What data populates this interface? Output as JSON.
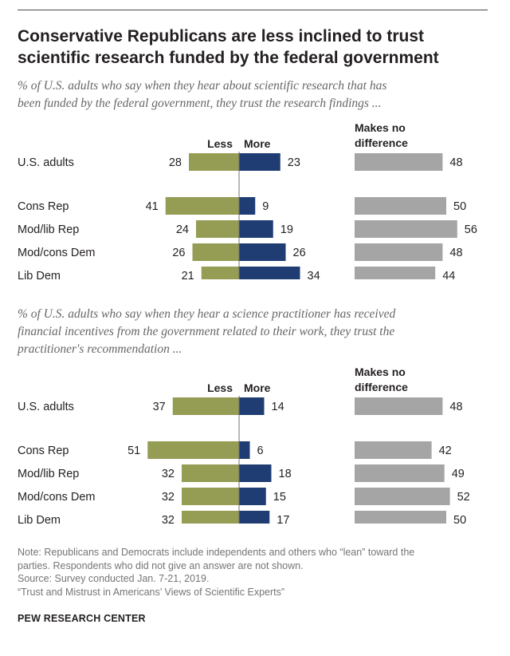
{
  "title_line1": "Conservative Republicans are less inclined to trust",
  "title_line2": "scientific research funded by the federal government",
  "colors": {
    "less": "#959c54",
    "more": "#1f3c73",
    "no_diff": "#a5a5a5",
    "axis": "#707070"
  },
  "chart_data": [
    {
      "type": "bar",
      "subtitle_line1": "% of U.S. adults who say when they hear about scientific research that has",
      "subtitle_line2": "been funded by the federal government, they trust the research findings ...",
      "legend": {
        "less": "Less",
        "more": "More",
        "no_diff_line1": "Makes no",
        "no_diff_line2": "difference"
      },
      "categories": [
        "U.S. adults",
        "Cons Rep",
        "Mod/lib Rep",
        "Mod/cons Dem",
        "Lib Dem"
      ],
      "series": [
        {
          "name": "Less",
          "values": [
            28,
            41,
            24,
            26,
            21
          ]
        },
        {
          "name": "More",
          "values": [
            23,
            9,
            19,
            26,
            34
          ]
        },
        {
          "name": "Makes no difference",
          "values": [
            48,
            50,
            56,
            48,
            44
          ]
        }
      ]
    },
    {
      "type": "bar",
      "subtitle_line1": "% of U.S. adults who say when they hear a science practitioner has received",
      "subtitle_line2": "financial incentives from the government related to their work, they trust the",
      "subtitle_line3": "practitioner's recommendation ...",
      "legend": {
        "less": "Less",
        "more": "More",
        "no_diff_line1": "Makes no",
        "no_diff_line2": "difference"
      },
      "categories": [
        "U.S. adults",
        "Cons Rep",
        "Mod/lib Rep",
        "Mod/cons Dem",
        "Lib Dem"
      ],
      "series": [
        {
          "name": "Less",
          "values": [
            37,
            51,
            32,
            32,
            32
          ]
        },
        {
          "name": "More",
          "values": [
            14,
            6,
            18,
            15,
            17
          ]
        },
        {
          "name": "Makes no difference",
          "values": [
            48,
            42,
            49,
            52,
            50
          ]
        }
      ]
    }
  ],
  "notes": {
    "line1": "Note: Republicans and Democrats include independents and others who “lean” toward the",
    "line2": "parties. Respondents who did not give an answer are not shown.",
    "line3": "Source: Survey conducted Jan. 7-21, 2019.",
    "line4": "“Trust and Mistrust in Americans’ Views of Scientific Experts”"
  },
  "org": "PEW RESEARCH CENTER"
}
